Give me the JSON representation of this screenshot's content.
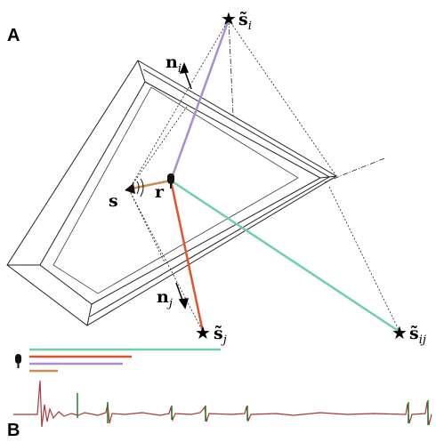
{
  "panels": {
    "a": "A",
    "b": "B"
  },
  "labels": {
    "s_i": {
      "symbol": "s̃",
      "subscript": "i"
    },
    "n_i": {
      "symbol": "n",
      "subscript": "i"
    },
    "s": {
      "symbol": "s"
    },
    "r": {
      "symbol": "r"
    },
    "n_j": {
      "symbol": "n",
      "subscript": "j"
    },
    "s_j": {
      "symbol": "s̃",
      "subscript": "j"
    },
    "s_ij": {
      "symbol": "s̃",
      "subscript": "ij"
    }
  }
}
